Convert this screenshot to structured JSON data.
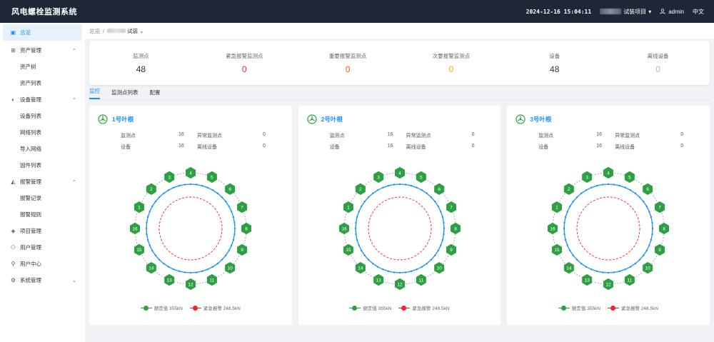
{
  "app": {
    "title": "风电螺栓监测系统"
  },
  "topbar": {
    "datetime": "2024-12-16 15:04:11",
    "project_suffix": "试装项目",
    "user": "admin",
    "lang": "中文"
  },
  "sidebar": {
    "items": [
      {
        "label": "总览",
        "icon": "dashboard-icon",
        "active": true
      },
      {
        "label": "资产管理",
        "icon": "asset-icon",
        "expanded": true,
        "children": [
          "资产树",
          "资产列表"
        ]
      },
      {
        "label": "设备管理",
        "icon": "device-icon",
        "expanded": true,
        "children": [
          "设备列表",
          "网络列表",
          "导入网络",
          "固件列表"
        ]
      },
      {
        "label": "报警管理",
        "icon": "alarm-icon",
        "expanded": true,
        "children": [
          "报警记录",
          "报警规则"
        ]
      },
      {
        "label": "项目管理",
        "icon": "project-icon"
      },
      {
        "label": "用户管理",
        "icon": "users-icon"
      },
      {
        "label": "用户中心",
        "icon": "user-center-icon"
      },
      {
        "label": "系统管理",
        "icon": "settings-icon",
        "expanded": false
      }
    ]
  },
  "breadcrumb": {
    "root": "总览",
    "sep": "/",
    "current_suffix": "试装"
  },
  "stats": [
    {
      "label": "监测点",
      "value": "48",
      "color": "#333333"
    },
    {
      "label": "紧急报警监测点",
      "value": "0",
      "color": "#f5222d"
    },
    {
      "label": "重要报警监测点",
      "value": "0",
      "color": "#fa541c"
    },
    {
      "label": "次要报警监测点",
      "value": "0",
      "color": "#faad14"
    },
    {
      "label": "设备",
      "value": "48",
      "color": "#333333"
    },
    {
      "label": "离线设备",
      "value": "0",
      "color": "#bbbbbb"
    }
  ],
  "tabs": [
    {
      "label": "监控",
      "active": true
    },
    {
      "label": "监测点列表"
    },
    {
      "label": "配置"
    }
  ],
  "blades": [
    {
      "title": "1号叶根",
      "points_label": "监测点",
      "points": "16",
      "abnormal_label": "异常监测点",
      "abnormal": "0",
      "devices_label": "设备",
      "devices": "16",
      "offline_label": "离线设备",
      "offline": "0"
    },
    {
      "title": "2号叶根",
      "points_label": "监测点",
      "points": "16",
      "abnormal_label": "异常监测点",
      "abnormal": "0",
      "devices_label": "设备",
      "devices": "16",
      "offline_label": "离线设备",
      "offline": "0"
    },
    {
      "title": "3号叶根",
      "points_label": "监测点",
      "points": "16",
      "abnormal_label": "异常监测点",
      "abnormal": "0",
      "devices_label": "设备",
      "devices": "16",
      "offline_label": "离线设备",
      "offline": "0"
    }
  ],
  "ring": {
    "bolts": [
      "1",
      "2",
      "3",
      "4",
      "5",
      "6",
      "7",
      "8",
      "9",
      "10",
      "11",
      "12",
      "13",
      "14",
      "15",
      "16"
    ],
    "bolt_color": "#2ea043",
    "line_color": "#1890ff",
    "alarm_color": "#f5222d"
  },
  "legend": {
    "rated": "额定值 355kN",
    "alarm": "紧急报警 248.5kN",
    "rated_color": "#2ea043",
    "alarm_color": "#f5222d"
  }
}
